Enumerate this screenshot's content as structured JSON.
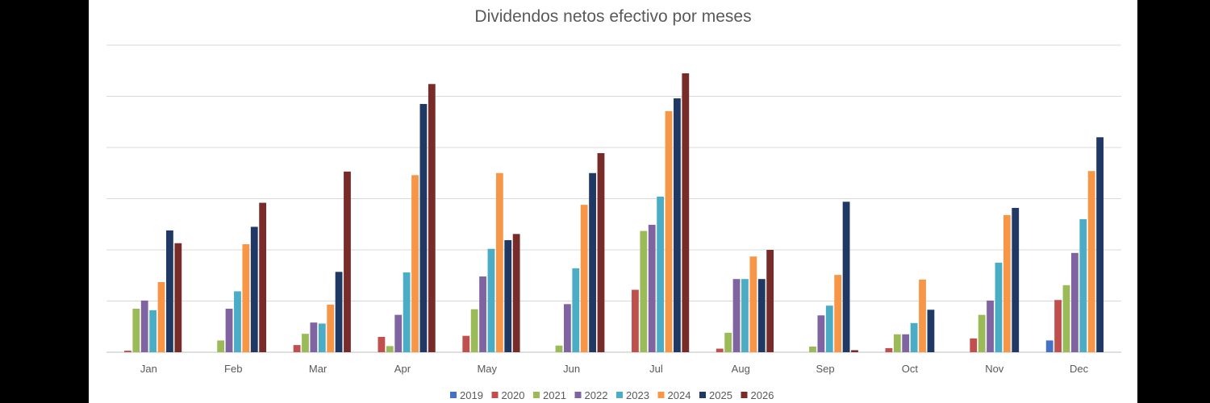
{
  "chart_data": {
    "type": "bar",
    "title": "Dividendos netos efectivo por meses",
    "xlabel": "",
    "ylabel": "",
    "ylim": [
      0,
      60
    ],
    "grid": true,
    "y_axis_labels_visible": false,
    "legend_placement": "bottom",
    "categories": [
      "Jan",
      "Feb",
      "Mar",
      "Apr",
      "May",
      "Jun",
      "Jul",
      "Aug",
      "Sep",
      "Oct",
      "Nov",
      "Dec"
    ],
    "series": [
      {
        "name": "2019",
        "color": "#4472C4",
        "values": [
          0,
          0,
          0,
          0,
          0,
          0,
          0,
          0,
          0,
          0,
          0,
          2.3
        ]
      },
      {
        "name": "2020",
        "color": "#C0504D",
        "values": [
          0.3,
          0,
          1.4,
          3.0,
          3.2,
          0,
          12.2,
          0.7,
          0,
          0.8,
          2.7,
          10.2
        ]
      },
      {
        "name": "2021",
        "color": "#9BBB59",
        "values": [
          8.5,
          2.3,
          3.6,
          1.2,
          8.4,
          1.3,
          23.7,
          3.8,
          1.1,
          3.5,
          7.3,
          13.1
        ]
      },
      {
        "name": "2022",
        "color": "#8064A2",
        "values": [
          10.1,
          8.5,
          5.8,
          7.3,
          14.8,
          9.4,
          24.9,
          14.3,
          7.2,
          3.5,
          10.1,
          19.4
        ]
      },
      {
        "name": "2023",
        "color": "#4BACC6",
        "values": [
          8.2,
          11.9,
          5.6,
          15.6,
          20.2,
          16.4,
          30.4,
          14.3,
          9.1,
          5.7,
          17.5,
          26.0
        ]
      },
      {
        "name": "2024",
        "color": "#F79646",
        "values": [
          13.7,
          21.1,
          9.3,
          34.6,
          35.0,
          28.8,
          47.1,
          18.7,
          15.1,
          14.2,
          26.8,
          35.4
        ]
      },
      {
        "name": "2025",
        "color": "#1F3864",
        "values": [
          23.8,
          24.5,
          15.7,
          48.5,
          21.9,
          35.0,
          49.6,
          14.3,
          29.4,
          8.3,
          28.2,
          42.0
        ]
      },
      {
        "name": "2026",
        "color": "#772C2A",
        "values": [
          21.3,
          29.2,
          35.3,
          52.4,
          23.1,
          38.9,
          54.5,
          20.0,
          0.4,
          0,
          0,
          0
        ]
      }
    ]
  }
}
